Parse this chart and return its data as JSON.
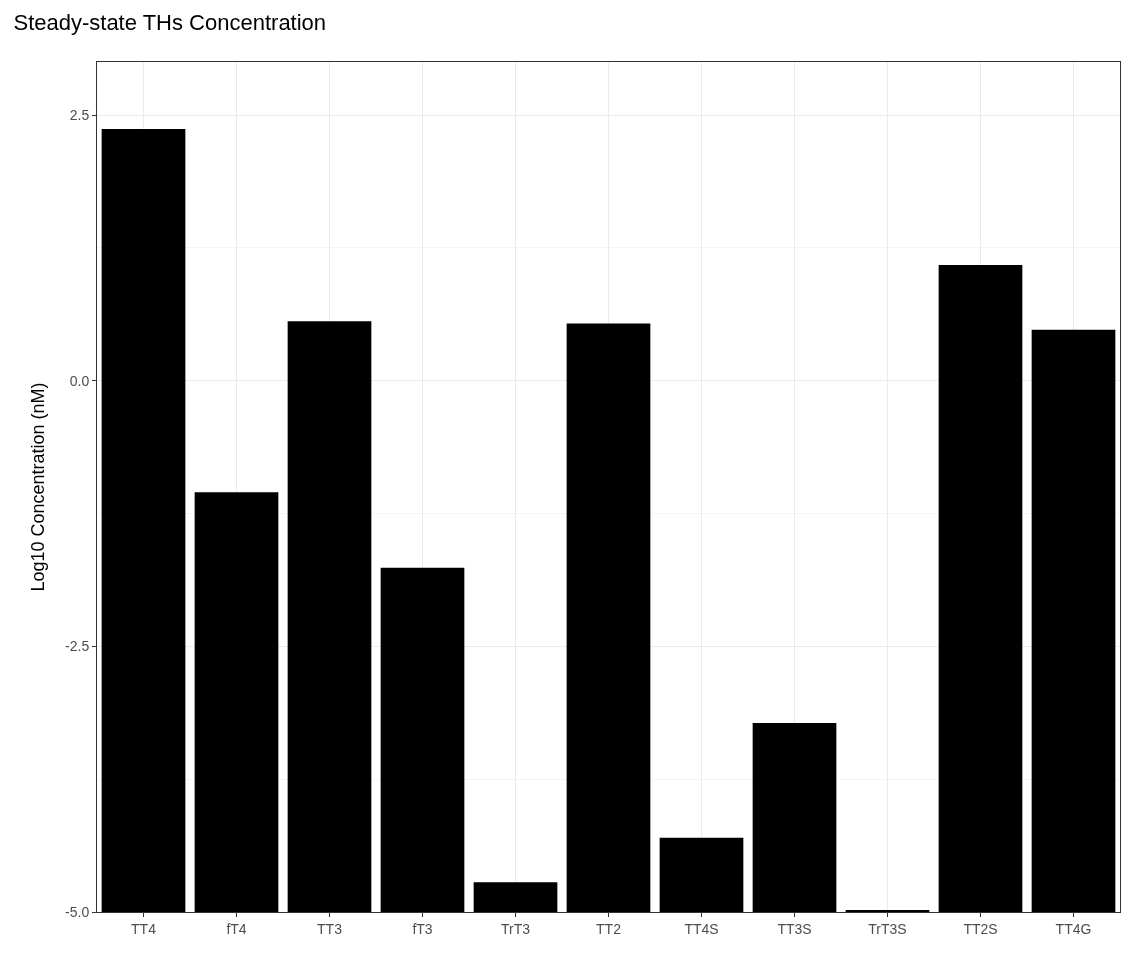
{
  "chart_data": {
    "type": "bar",
    "title": "Steady-state THs Concentration",
    "ylabel": "Log10 Concentration (nM)",
    "categories": [
      "TT4",
      "fT4",
      "TT3",
      "fT3",
      "TrT3",
      "TT2",
      "TT4S",
      "TT3S",
      "TrT3S",
      "TT2S",
      "TT4G"
    ],
    "base": [
      -5,
      -5,
      -5,
      -5,
      -5,
      -5,
      -5,
      -5,
      -5,
      -5,
      -5
    ],
    "values": [
      7.37,
      3.95,
      5.56,
      3.24,
      0.28,
      5.54,
      0.7,
      1.78,
      0.01,
      6.09,
      5.48
    ],
    "color": "#000000",
    "ylim": [
      -5,
      3.0
    ],
    "yticks": [
      {
        "value": -5,
        "label": "-5.0"
      },
      {
        "value": -2.5,
        "label": "-2.5"
      },
      {
        "value": 0,
        "label": "0.0"
      },
      {
        "value": 2.5,
        "label": "2.5"
      }
    ],
    "grid": true
  }
}
